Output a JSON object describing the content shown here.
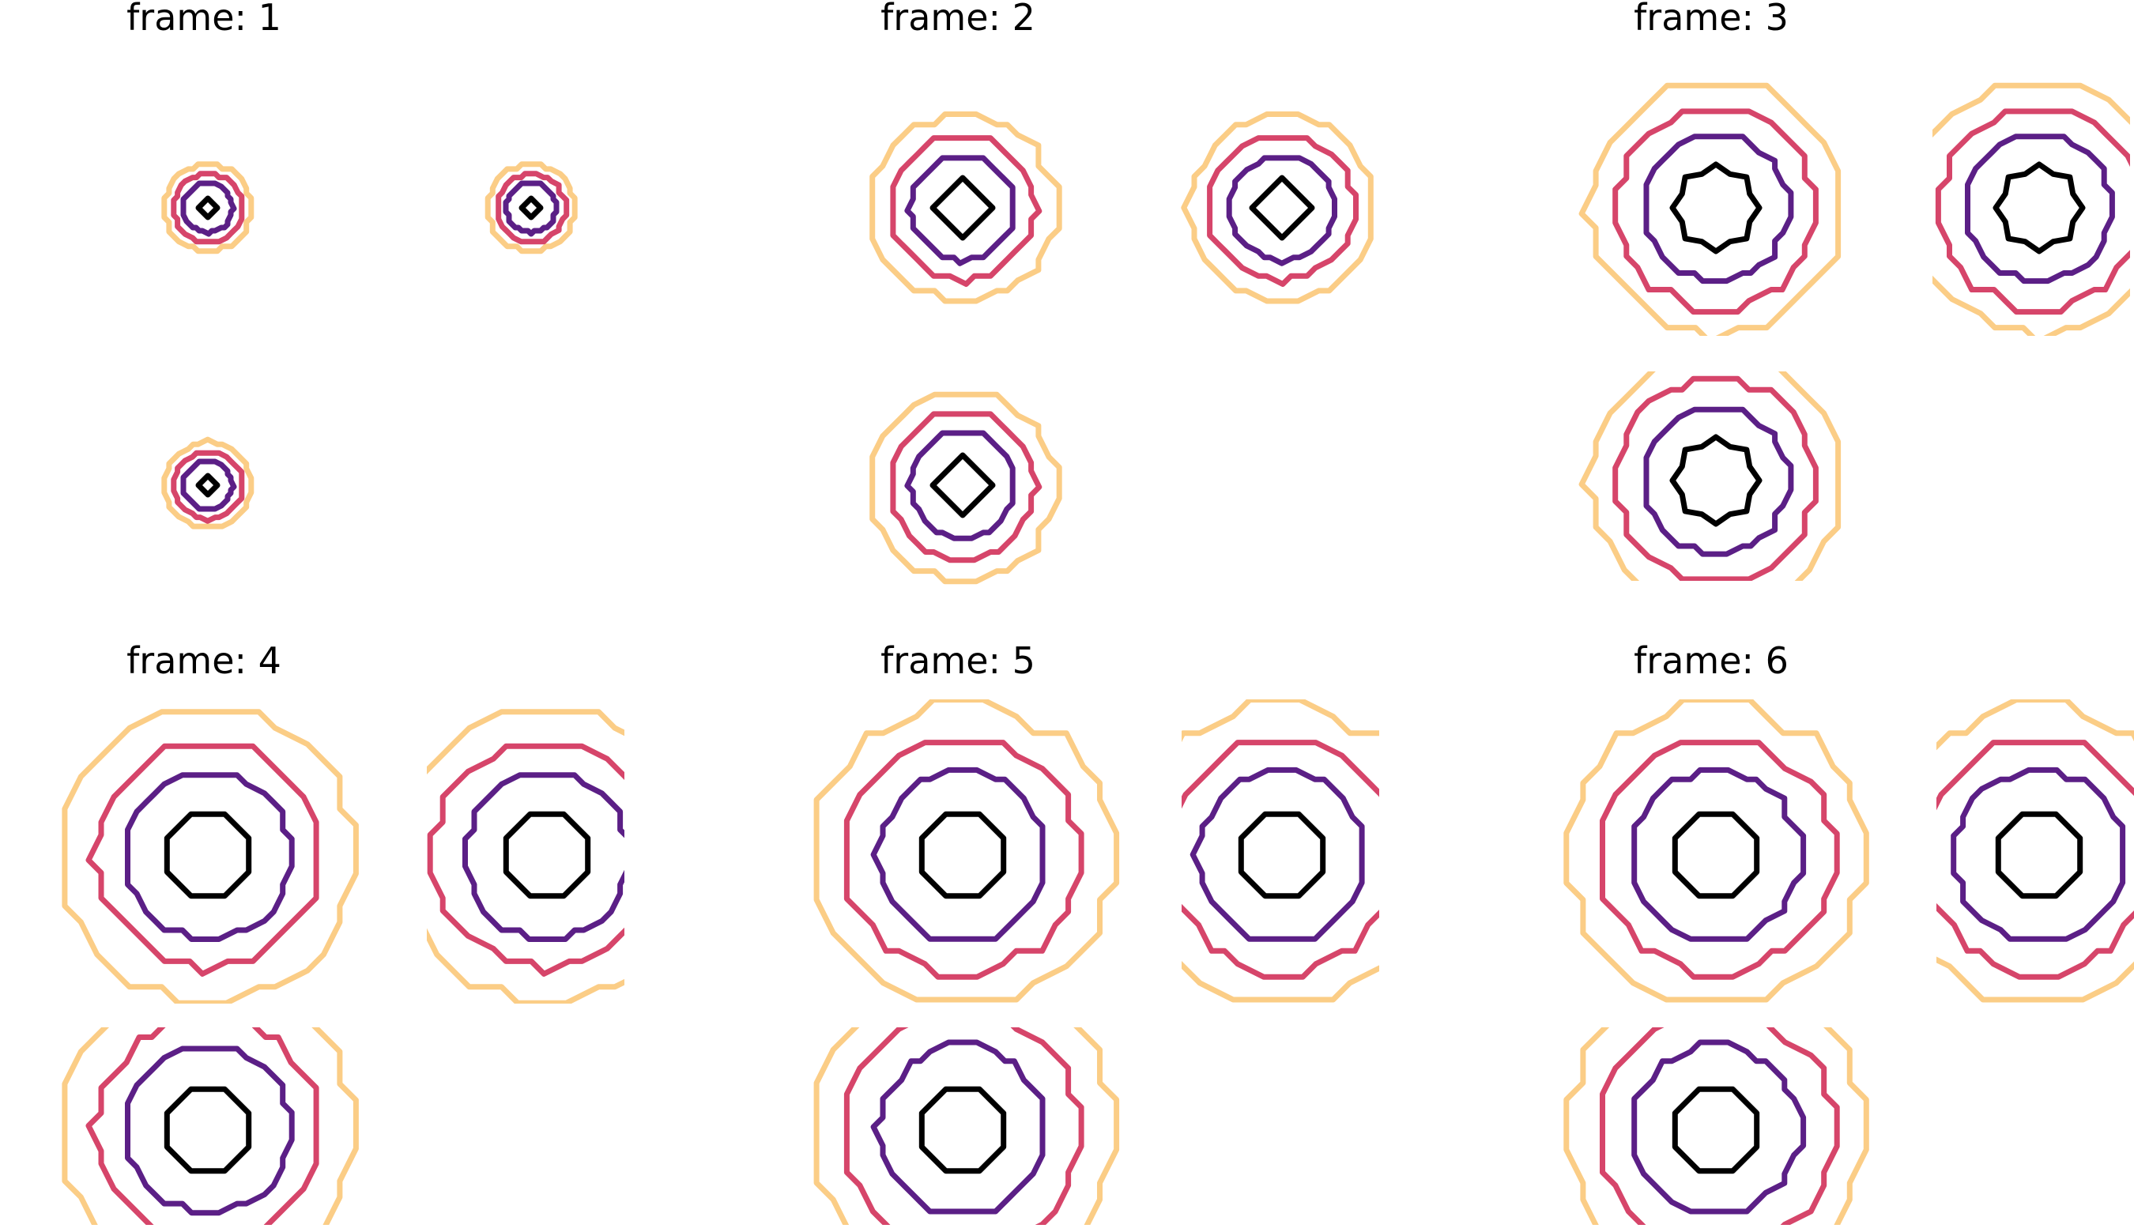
{
  "figure": {
    "title_prefix": "frame: ",
    "frames": [
      {
        "label": "frame: 1",
        "glyph_scale": 1.0,
        "core": "diamond"
      },
      {
        "label": "frame: 2",
        "glyph_scale": 2.15,
        "core": "diamond"
      },
      {
        "label": "frame: 3",
        "glyph_scale": 2.95,
        "core": "star"
      },
      {
        "label": "frame: 4",
        "glyph_scale": 3.35,
        "core": "octagon"
      },
      {
        "label": "frame: 5",
        "glyph_scale": 3.45,
        "core": "octagon"
      },
      {
        "label": "frame: 6",
        "glyph_scale": 3.45,
        "core": "octagon"
      }
    ],
    "glyph_positions": [
      "top-left",
      "top-right",
      "bottom-left"
    ],
    "contour_levels": [
      {
        "name": "level-1",
        "color": "#000000"
      },
      {
        "name": "level-2",
        "color": "#5b1f86"
      },
      {
        "name": "level-3",
        "color": "#d6456a"
      },
      {
        "name": "level-4",
        "color": "#fbcd86"
      }
    ]
  }
}
